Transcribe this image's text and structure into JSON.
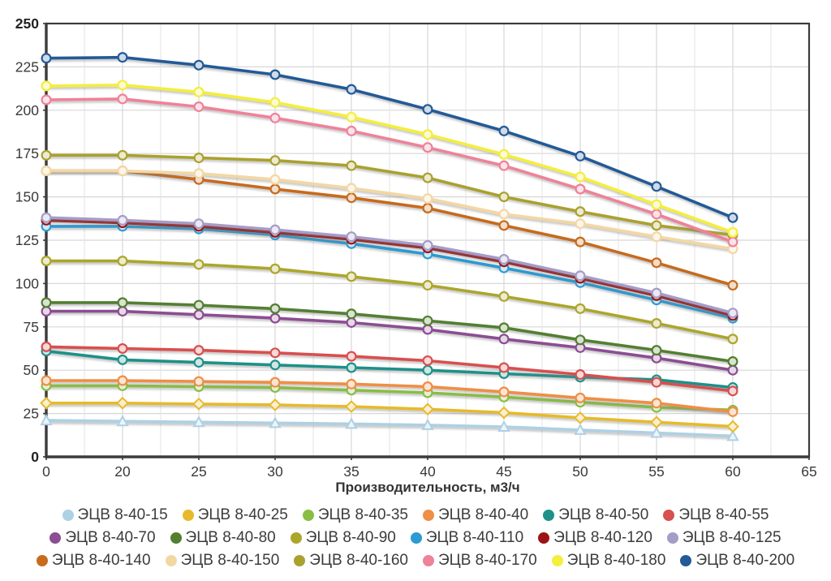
{
  "chart_data": {
    "type": "line",
    "title": "",
    "xlabel": "Производительность, м3/ч",
    "ylabel": "",
    "ylim": [
      0,
      250
    ],
    "ytick_step": 25,
    "grid": true,
    "legend_position": "bottom",
    "x_ticks": [
      "0",
      "20",
      "25",
      "30",
      "35",
      "40",
      "45",
      "50",
      "55",
      "60",
      "65"
    ],
    "y_ticks": [
      "0",
      "25",
      "50",
      "75",
      "100",
      "125",
      "150",
      "175",
      "200",
      "225",
      "250"
    ],
    "x_points": [
      0,
      20,
      25,
      30,
      35,
      40,
      45,
      50,
      55,
      60
    ],
    "series": [
      {
        "name": "ЭЦВ 8-40-15",
        "color": "#aed0e4",
        "marker": "triangle",
        "values": [
          21,
          20.5,
          20,
          19.5,
          19,
          18.3,
          17.3,
          15.5,
          13.8,
          12
        ]
      },
      {
        "name": "ЭЦВ 8-40-25",
        "color": "#e7ba2b",
        "marker": "diamond",
        "values": [
          31,
          31,
          30.5,
          30,
          29,
          27.5,
          25.5,
          22.5,
          20,
          17.5
        ]
      },
      {
        "name": "ЭЦВ 8-40-35",
        "color": "#8abd44",
        "marker": "circle",
        "values": [
          41,
          41,
          40.5,
          40,
          38.5,
          37,
          34.5,
          31.5,
          28.5,
          27
        ]
      },
      {
        "name": "ЭЦВ 8-40-40",
        "color": "#ef8e45",
        "marker": "circle",
        "values": [
          44,
          44,
          43.5,
          43,
          42,
          40.5,
          37.5,
          34,
          31,
          26
        ]
      },
      {
        "name": "ЭЦВ 8-40-50",
        "color": "#1f9189",
        "marker": "circle",
        "values": [
          61,
          56,
          54.5,
          53,
          51.5,
          50,
          48,
          46,
          44.5,
          40
        ]
      },
      {
        "name": "ЭЦВ 8-40-55",
        "color": "#d8504f",
        "marker": "circle",
        "values": [
          63.5,
          62.5,
          61.5,
          60,
          58,
          55.5,
          51.5,
          47.5,
          43,
          38
        ]
      },
      {
        "name": "ЭЦВ 8-40-70",
        "color": "#8c4d93",
        "marker": "circle",
        "values": [
          84,
          84,
          82,
          80,
          77.5,
          73.5,
          68,
          63,
          57,
          50
        ]
      },
      {
        "name": "ЭЦВ 8-40-80",
        "color": "#537f30",
        "marker": "circle",
        "values": [
          89,
          89,
          87.5,
          85.5,
          82.5,
          78.5,
          74.5,
          67.5,
          61.5,
          55
        ]
      },
      {
        "name": "ЭЦВ 8-40-90",
        "color": "#aca62c",
        "marker": "circle",
        "values": [
          113,
          113,
          111,
          108.5,
          104,
          99,
          92.5,
          85.5,
          77,
          68
        ]
      },
      {
        "name": "ЭЦВ 8-40-110",
        "color": "#2c9ad3",
        "marker": "circle",
        "values": [
          133,
          133,
          131.5,
          128,
          123,
          117,
          109,
          100.5,
          90.5,
          80
        ]
      },
      {
        "name": "ЭЦВ 8-40-120",
        "color": "#9c1315",
        "marker": "circle",
        "values": [
          136.5,
          135,
          133,
          129.5,
          125.5,
          120.5,
          112.5,
          103,
          93,
          81.5
        ]
      },
      {
        "name": "ЭЦВ 8-40-125",
        "color": "#a59cc8",
        "marker": "circle",
        "values": [
          138,
          136.5,
          134.5,
          131,
          127,
          122,
          114,
          104.5,
          94.5,
          83
        ]
      },
      {
        "name": "ЭЦВ 8-40-140",
        "color": "#c76b1d",
        "marker": "circle",
        "values": [
          165,
          165,
          160,
          154.5,
          149.5,
          143.5,
          133.5,
          124,
          112,
          99
        ]
      },
      {
        "name": "ЭЦВ 8-40-150",
        "color": "#f3d7a3",
        "marker": "circle",
        "values": [
          165,
          165,
          163.5,
          160,
          155,
          149,
          140,
          134.5,
          127,
          120
        ]
      },
      {
        "name": "ЭЦВ 8-40-160",
        "color": "#aaa12e",
        "marker": "circle",
        "values": [
          174,
          174,
          172.5,
          171,
          168,
          161,
          150,
          141.5,
          133.5,
          128
        ]
      },
      {
        "name": "ЭЦВ 8-40-170",
        "color": "#ee8299",
        "marker": "circle",
        "values": [
          206,
          206.5,
          202,
          195.5,
          188,
          178.5,
          168,
          154.5,
          140,
          124
        ]
      },
      {
        "name": "ЭЦВ 8-40-180",
        "color": "#f4ee3c",
        "marker": "circle",
        "values": [
          214,
          214.5,
          210.5,
          204.5,
          196,
          186,
          174.5,
          161.5,
          145.5,
          129.5
        ]
      },
      {
        "name": "ЭЦВ 8-40-200",
        "color": "#235a97",
        "marker": "circle",
        "values": [
          230,
          230.5,
          226,
          220.5,
          212,
          200.5,
          188,
          173.5,
          156,
          138
        ]
      }
    ],
    "colors": {
      "grid_major": "#d7d7d7",
      "grid_minor": "#e3e3e3",
      "border": "#3b3b3b",
      "tick_text": "#3a3a3a"
    }
  }
}
